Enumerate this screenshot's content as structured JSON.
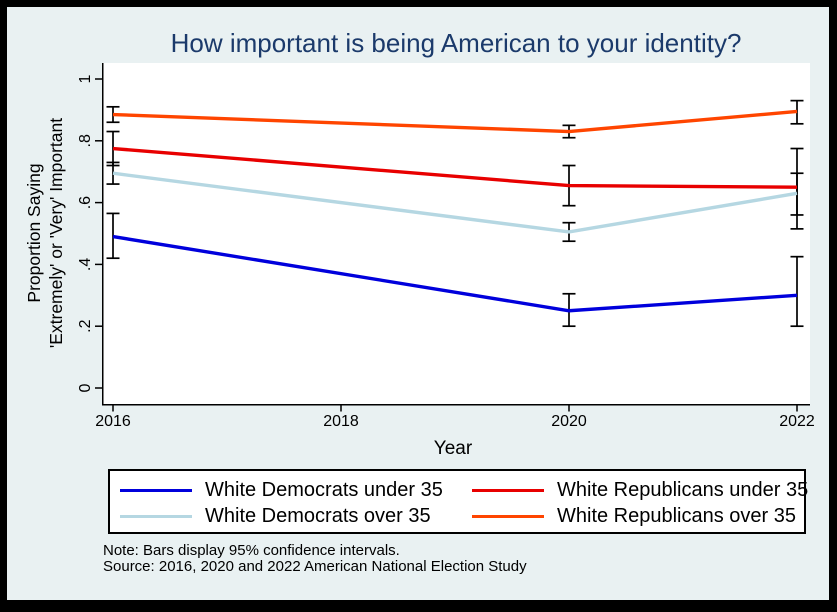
{
  "title": "How important is being American to your identity?",
  "colors": {
    "outer_border": "#000000",
    "background": "#e9f1f2",
    "plot_background": "#ffffff",
    "title_text": "#1b3a6b",
    "axis": "#000000",
    "error_bar": "#000000"
  },
  "chart_data": {
    "type": "line",
    "title": "How important is being American to your identity?",
    "xlabel": "Year",
    "ylabel_line1": "Proportion Saying",
    "ylabel_line2": "'Extremely' or 'Very' Important",
    "x": [
      2016,
      2020,
      2022
    ],
    "x_tick_values": [
      2016,
      2018,
      2020,
      2022
    ],
    "x_tick_labels": [
      "2016",
      "2018",
      "2020",
      "2022"
    ],
    "y_tick_values": [
      0,
      0.2,
      0.4,
      0.6,
      0.8,
      1
    ],
    "y_tick_labels": [
      "0",
      ".2",
      ".4",
      ".6",
      ".8",
      "1"
    ],
    "ylim": [
      0,
      1
    ],
    "grid": false,
    "error_bars": "95% confidence intervals",
    "series": [
      {
        "name": "White Democrats under 35",
        "color": "#0000dc",
        "values": [
          0.49,
          0.25,
          0.3
        ],
        "ci_low": [
          0.42,
          0.2,
          0.2
        ],
        "ci_high": [
          0.565,
          0.305,
          0.425
        ]
      },
      {
        "name": "White Republicans under 35",
        "color": "#e80000",
        "values": [
          0.775,
          0.655,
          0.65
        ],
        "ci_low": [
          0.72,
          0.59,
          0.515
        ],
        "ci_high": [
          0.83,
          0.72,
          0.775
        ]
      },
      {
        "name": "White Democrats over 35",
        "color": "#b5d7e2",
        "values": [
          0.695,
          0.505,
          0.63
        ],
        "ci_low": [
          0.66,
          0.475,
          0.56
        ],
        "ci_high": [
          0.73,
          0.535,
          0.695
        ]
      },
      {
        "name": "White Republicans over 35",
        "color": "#ff4500",
        "values": [
          0.885,
          0.83,
          0.895
        ],
        "ci_low": [
          0.86,
          0.81,
          0.855
        ],
        "ci_high": [
          0.91,
          0.85,
          0.93
        ]
      }
    ],
    "legend": {
      "position": "bottom",
      "rows": 2,
      "columns": 2,
      "order": [
        0,
        1,
        2,
        3
      ]
    }
  },
  "notes": {
    "line1": "Note: Bars display 95% confidence intervals.",
    "line2": "Source: 2016, 2020 and 2022 American National Election Study"
  }
}
